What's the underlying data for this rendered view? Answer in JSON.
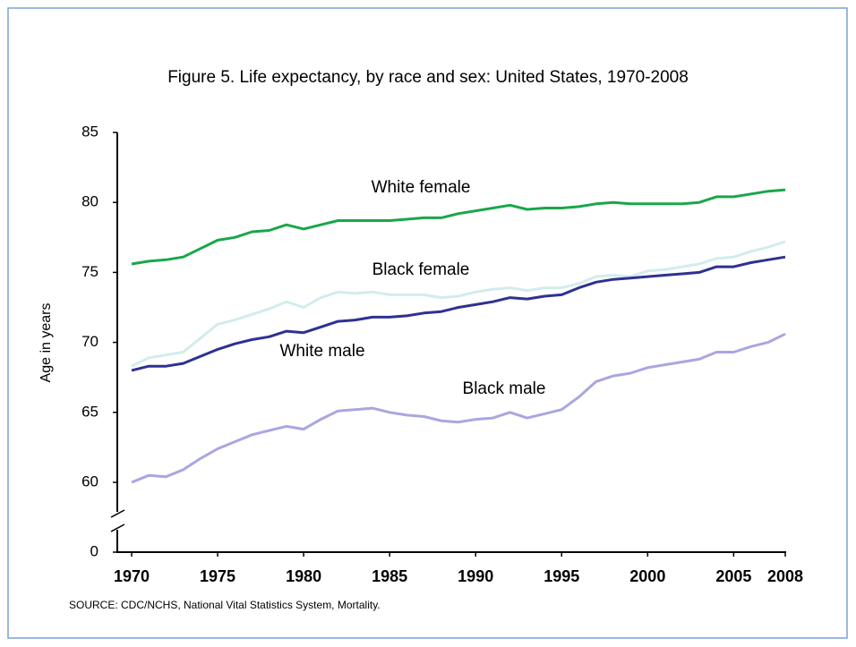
{
  "chart_data": {
    "type": "line",
    "title": "Figure 5. Life expectancy, by race and sex: United States, 1970-2008",
    "ylabel": "Age in years",
    "source": "SOURCE: CDC/NCHS, National Vital Statistics System, Mortality.",
    "x": [
      1970,
      1971,
      1972,
      1973,
      1974,
      1975,
      1976,
      1977,
      1978,
      1979,
      1980,
      1981,
      1982,
      1983,
      1984,
      1985,
      1986,
      1987,
      1988,
      1989,
      1990,
      1991,
      1992,
      1993,
      1994,
      1995,
      1996,
      1997,
      1998,
      1999,
      2000,
      2001,
      2002,
      2003,
      2004,
      2005,
      2006,
      2007,
      2008
    ],
    "xlim": [
      1970,
      2008
    ],
    "xticks": [
      1970,
      1975,
      1980,
      1985,
      1990,
      1995,
      2000,
      2005,
      2008
    ],
    "ylim": [
      0,
      85
    ],
    "y_break": [
      0,
      60
    ],
    "yticks": [
      0,
      60,
      65,
      70,
      75,
      80,
      85
    ],
    "series": [
      {
        "name": "White female",
        "color": "#1aa64a",
        "label_color": "#2e3192",
        "values": [
          75.6,
          75.8,
          75.9,
          76.1,
          76.7,
          77.3,
          77.5,
          77.9,
          78.0,
          78.4,
          78.1,
          78.4,
          78.7,
          78.7,
          78.7,
          78.7,
          78.8,
          78.9,
          78.9,
          79.2,
          79.4,
          79.6,
          79.8,
          79.5,
          79.6,
          79.6,
          79.7,
          79.9,
          80.0,
          79.9,
          79.9,
          79.9,
          79.9,
          80.0,
          80.4,
          80.4,
          80.6,
          80.8,
          80.9
        ]
      },
      {
        "name": "Black female",
        "color": "#d2ecec",
        "label_color": "#a9a6e0",
        "values": [
          68.3,
          68.9,
          69.1,
          69.3,
          70.3,
          71.3,
          71.6,
          72.0,
          72.4,
          72.9,
          72.5,
          73.2,
          73.6,
          73.5,
          73.6,
          73.4,
          73.4,
          73.4,
          73.2,
          73.3,
          73.6,
          73.8,
          73.9,
          73.7,
          73.9,
          73.9,
          74.2,
          74.7,
          74.8,
          74.7,
          75.1,
          75.2,
          75.4,
          75.6,
          76.0,
          76.1,
          76.5,
          76.8,
          77.2
        ]
      },
      {
        "name": "White male",
        "color": "#2e3192",
        "label_color": "#8c8c8c",
        "values": [
          68.0,
          68.3,
          68.3,
          68.5,
          69.0,
          69.5,
          69.9,
          70.2,
          70.4,
          70.8,
          70.7,
          71.1,
          71.5,
          71.6,
          71.8,
          71.8,
          71.9,
          72.1,
          72.2,
          72.5,
          72.7,
          72.9,
          73.2,
          73.1,
          73.3,
          73.4,
          73.9,
          74.3,
          74.5,
          74.6,
          74.7,
          74.8,
          74.9,
          75.0,
          75.4,
          75.4,
          75.7,
          75.9,
          76.1
        ]
      },
      {
        "name": "Black male",
        "color": "#a9a6e0",
        "label_color": "#1aa64a",
        "values": [
          60.0,
          60.5,
          60.4,
          60.9,
          61.7,
          62.4,
          62.9,
          63.4,
          63.7,
          64.0,
          63.8,
          64.5,
          65.1,
          65.2,
          65.3,
          65.0,
          64.8,
          64.7,
          64.4,
          64.3,
          64.5,
          64.6,
          65.0,
          64.6,
          64.9,
          65.2,
          66.1,
          67.2,
          67.6,
          67.8,
          68.2,
          68.4,
          68.6,
          68.8,
          69.3,
          69.3,
          69.7,
          70.0,
          70.6
        ]
      }
    ]
  }
}
